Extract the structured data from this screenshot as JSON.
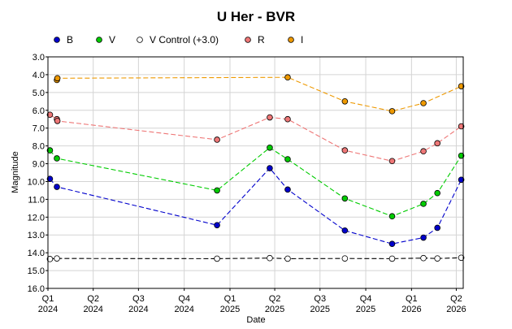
{
  "chart_data": {
    "type": "line",
    "title": "U Her - BVR",
    "xlabel": "Date",
    "ylabel": "Magnitude",
    "ylim": [
      16.0,
      3.0
    ],
    "y_inverted": true,
    "y_ticks": [
      "3.0",
      "4.0",
      "5.0",
      "6.0",
      "7.0",
      "8.0",
      "9.0",
      "10.0",
      "11.0",
      "12.0",
      "13.0",
      "14.0",
      "15.0",
      "16.0"
    ],
    "xlim": [
      "2024-01-01",
      "2026-04-15"
    ],
    "x_ticks": [
      {
        "date": "2024-01-01",
        "label_top": "Q1",
        "label_bottom": "2024"
      },
      {
        "date": "2024-04-01",
        "label_top": "Q2",
        "label_bottom": "2024"
      },
      {
        "date": "2024-07-01",
        "label_top": "Q3",
        "label_bottom": "2024"
      },
      {
        "date": "2024-10-01",
        "label_top": "Q4",
        "label_bottom": "2024"
      },
      {
        "date": "2025-01-01",
        "label_top": "Q1",
        "label_bottom": "2025"
      },
      {
        "date": "2025-04-01",
        "label_top": "Q2",
        "label_bottom": "2025"
      },
      {
        "date": "2025-07-01",
        "label_top": "Q3",
        "label_bottom": "2025"
      },
      {
        "date": "2025-10-01",
        "label_top": "Q4",
        "label_bottom": "2025"
      },
      {
        "date": "2026-01-01",
        "label_top": "Q1",
        "label_bottom": "2026"
      },
      {
        "date": "2026-04-01",
        "label_top": "Q2",
        "label_bottom": "2026"
      }
    ],
    "grid": true,
    "legend_position": "top",
    "series": [
      {
        "name": "B",
        "color": "#0000cc",
        "marker": "filled",
        "points": [
          [
            "2024-01-05",
            9.85
          ],
          [
            "2024-01-19",
            10.3
          ],
          [
            "2024-12-06",
            12.45
          ],
          [
            "2025-03-22",
            9.25
          ],
          [
            "2025-04-27",
            10.45
          ],
          [
            "2025-08-20",
            12.75
          ],
          [
            "2025-11-23",
            13.5
          ],
          [
            "2026-01-25",
            13.15
          ],
          [
            "2026-02-22",
            12.6
          ],
          [
            "2026-04-11",
            9.9
          ]
        ]
      },
      {
        "name": "V",
        "color": "#00cc00",
        "marker": "filled",
        "points": [
          [
            "2024-01-05",
            8.25
          ],
          [
            "2024-01-19",
            8.7
          ],
          [
            "2024-12-06",
            10.5
          ],
          [
            "2025-03-22",
            8.1
          ],
          [
            "2025-04-27",
            8.75
          ],
          [
            "2025-08-20",
            10.95
          ],
          [
            "2025-11-23",
            11.95
          ],
          [
            "2026-01-25",
            11.25
          ],
          [
            "2026-02-22",
            10.65
          ],
          [
            "2026-04-11",
            8.55
          ]
        ]
      },
      {
        "name": "V Control (+3.0)",
        "color": "#000000",
        "marker": "open",
        "points": [
          [
            "2024-01-05",
            14.35
          ],
          [
            "2024-01-19",
            14.32
          ],
          [
            "2024-12-06",
            14.33
          ],
          [
            "2025-03-22",
            14.3
          ],
          [
            "2025-04-27",
            14.33
          ],
          [
            "2025-08-20",
            14.32
          ],
          [
            "2025-11-23",
            14.33
          ],
          [
            "2026-01-25",
            14.3
          ],
          [
            "2026-02-22",
            14.32
          ],
          [
            "2026-04-11",
            14.28
          ]
        ]
      },
      {
        "name": "R",
        "color": "#ee7777",
        "marker": "filled",
        "points": [
          [
            "2024-01-05",
            6.25
          ],
          [
            "2024-01-19",
            6.5
          ],
          [
            "2024-01-20",
            6.6
          ],
          [
            "2024-12-06",
            7.65
          ],
          [
            "2025-03-22",
            6.4
          ],
          [
            "2025-04-27",
            6.5
          ],
          [
            "2025-08-20",
            8.25
          ],
          [
            "2025-11-23",
            8.85
          ],
          [
            "2026-01-25",
            8.3
          ],
          [
            "2026-02-22",
            7.85
          ],
          [
            "2026-04-11",
            6.9
          ]
        ]
      },
      {
        "name": "I",
        "color": "#ee9900",
        "marker": "filled",
        "points": [
          [
            "2024-01-19",
            4.3
          ],
          [
            "2024-01-20",
            4.2
          ],
          [
            "2025-04-27",
            4.15
          ],
          [
            "2025-08-20",
            5.5
          ],
          [
            "2025-11-23",
            6.05
          ],
          [
            "2026-01-25",
            5.6
          ],
          [
            "2026-04-11",
            4.65
          ]
        ]
      }
    ]
  }
}
